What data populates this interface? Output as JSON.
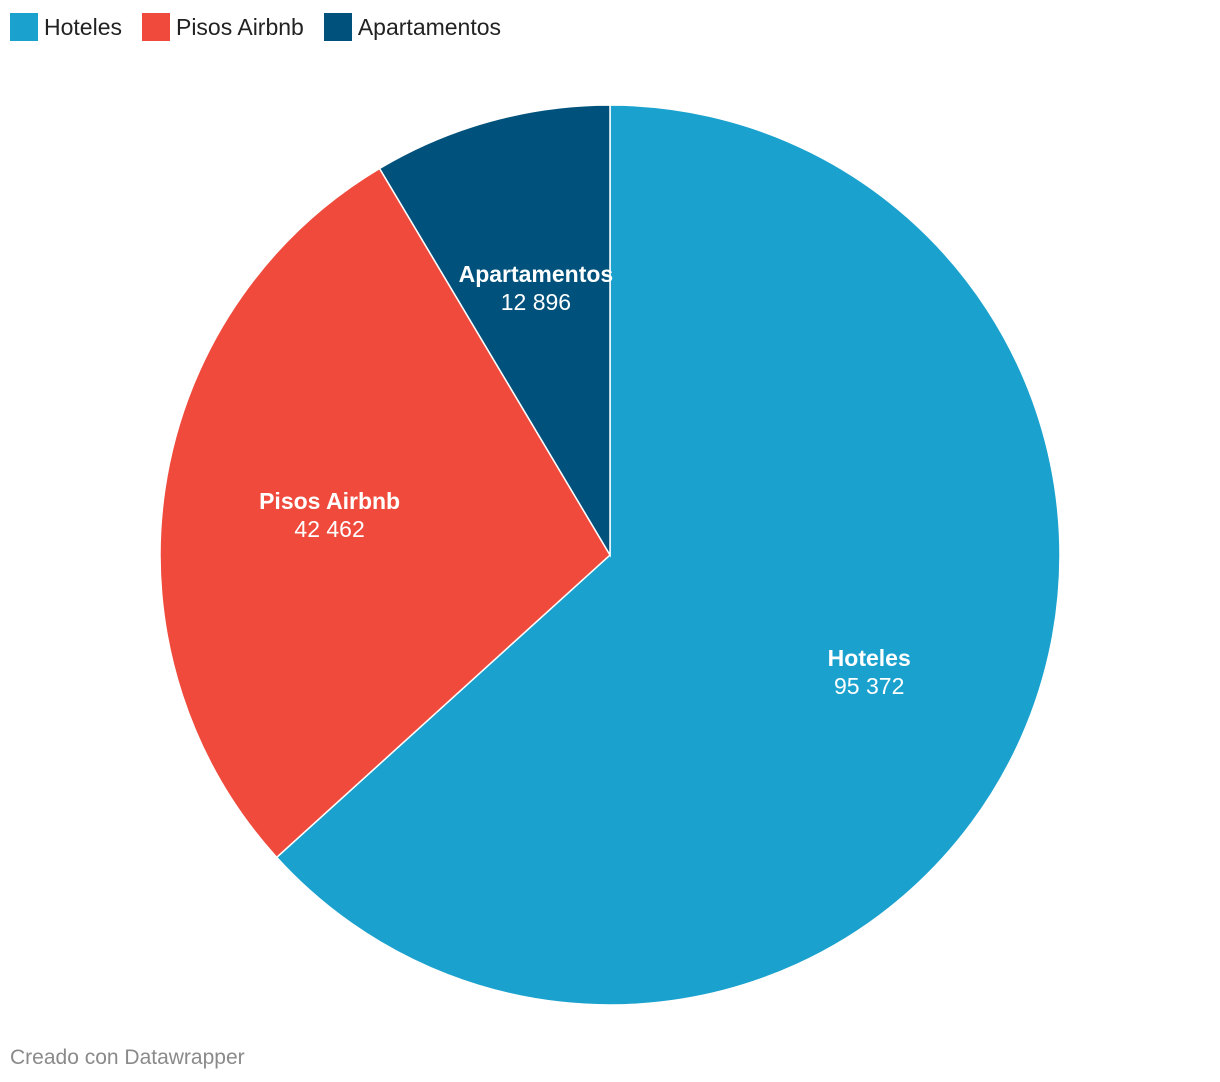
{
  "chart_data": {
    "type": "pie",
    "slices": [
      {
        "label": "Hoteles",
        "value": 95372,
        "value_label": "95 372",
        "color": "#1aa1cd"
      },
      {
        "label": "Pisos Airbnb",
        "value": 42462,
        "value_label": "42 462",
        "color": "#ef4a3c"
      },
      {
        "label": "Apartamentos",
        "value": 12896,
        "value_label": "12 896",
        "color": "#00527c"
      }
    ],
    "legend_position": "top-left",
    "start_angle": "12 o'clock",
    "direction": "clockwise"
  },
  "footer": {
    "credit": "Creado con Datawrapper"
  }
}
